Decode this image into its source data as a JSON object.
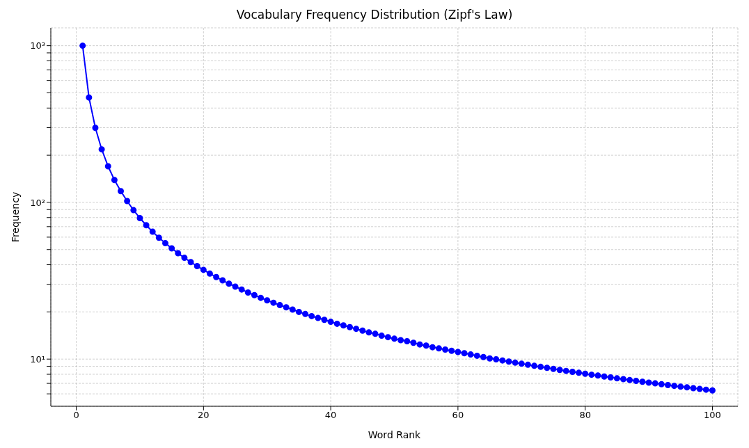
{
  "chart_data": {
    "type": "line",
    "title": "Vocabulary Frequency Distribution (Zipf's Law)",
    "xlabel": "Word Rank",
    "ylabel": "Frequency",
    "x": [
      1,
      2,
      3,
      4,
      5,
      6,
      7,
      8,
      9,
      10,
      11,
      12,
      13,
      14,
      15,
      16,
      17,
      18,
      19,
      20,
      21,
      22,
      23,
      24,
      25,
      26,
      27,
      28,
      29,
      30,
      31,
      32,
      33,
      34,
      35,
      36,
      37,
      38,
      39,
      40,
      41,
      42,
      43,
      44,
      45,
      46,
      47,
      48,
      49,
      50,
      51,
      52,
      53,
      54,
      55,
      56,
      57,
      58,
      59,
      60,
      61,
      62,
      63,
      64,
      65,
      66,
      67,
      68,
      69,
      70,
      71,
      72,
      73,
      74,
      75,
      76,
      77,
      78,
      79,
      80,
      81,
      82,
      83,
      84,
      85,
      86,
      87,
      88,
      89,
      90,
      91,
      92,
      93,
      94,
      95,
      96,
      97,
      98,
      99,
      100
    ],
    "series": [
      {
        "color": "#0000ff",
        "values": [
          1000,
          467,
          299,
          218,
          170,
          139,
          118,
          102,
          89.2,
          79.4,
          71.5,
          65.0,
          59.5,
          54.9,
          50.9,
          47.4,
          44.3,
          41.6,
          39.2,
          37.1,
          35.1,
          33.4,
          31.8,
          30.3,
          29.0,
          27.8,
          26.6,
          25.6,
          24.6,
          23.7,
          22.9,
          22.1,
          21.4,
          20.7,
          20.0,
          19.4,
          18.8,
          18.3,
          17.8,
          17.3,
          16.8,
          16.4,
          16.0,
          15.6,
          15.2,
          14.8,
          14.5,
          14.1,
          13.8,
          13.5,
          13.2,
          13.0,
          12.7,
          12.4,
          12.2,
          11.9,
          11.7,
          11.5,
          11.3,
          11.1,
          10.9,
          10.7,
          10.5,
          10.3,
          10.1,
          9.97,
          9.8,
          9.64,
          9.49,
          9.34,
          9.2,
          9.06,
          8.92,
          8.79,
          8.66,
          8.53,
          8.41,
          8.29,
          8.18,
          8.06,
          7.95,
          7.85,
          7.74,
          7.64,
          7.54,
          7.45,
          7.35,
          7.26,
          7.17,
          7.08,
          7.0,
          6.91,
          6.83,
          6.75,
          6.67,
          6.6,
          6.52,
          6.45,
          6.38,
          6.31
        ]
      }
    ],
    "xlim": [
      -4,
      104
    ],
    "xticks": [
      0,
      20,
      40,
      60,
      80,
      100
    ],
    "ylim": [
      5,
      1300
    ],
    "yticks": [
      {
        "value": 6,
        "label": null
      },
      {
        "value": 7,
        "label": null
      },
      {
        "value": 8,
        "label": null
      },
      {
        "value": 9,
        "label": null
      },
      {
        "value": 10,
        "label": "10¹"
      },
      {
        "value": 20,
        "label": null
      },
      {
        "value": 30,
        "label": null
      },
      {
        "value": 40,
        "label": null
      },
      {
        "value": 50,
        "label": null
      },
      {
        "value": 60,
        "label": null
      },
      {
        "value": 70,
        "label": null
      },
      {
        "value": 80,
        "label": null
      },
      {
        "value": 90,
        "label": null
      },
      {
        "value": 100,
        "label": "10²"
      },
      {
        "value": 200,
        "label": null
      },
      {
        "value": 300,
        "label": null
      },
      {
        "value": 400,
        "label": null
      },
      {
        "value": 500,
        "label": null
      },
      {
        "value": 600,
        "label": null
      },
      {
        "value": 700,
        "label": null
      },
      {
        "value": 800,
        "label": null
      },
      {
        "value": 900,
        "label": null
      },
      {
        "value": 1000,
        "label": "10³"
      }
    ],
    "log": "y",
    "grid": true,
    "marker": "circle",
    "line_style": "solid"
  }
}
